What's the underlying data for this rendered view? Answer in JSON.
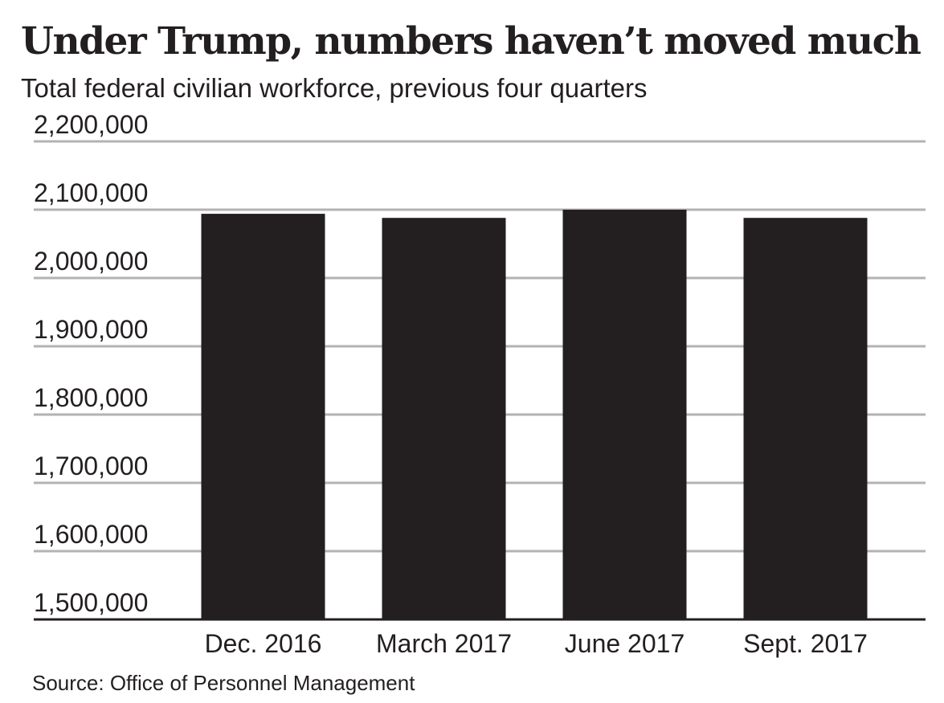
{
  "title": "Under Trump, numbers haven’t moved much",
  "subtitle": "Total federal civilian workforce, previous four quarters",
  "source": "Source: Office of Personnel Management",
  "chart_data": {
    "type": "bar",
    "title": "Under Trump, numbers haven’t moved much",
    "subtitle": "Total federal civilian workforce, previous four quarters",
    "xlabel": "",
    "ylabel": "",
    "categories": [
      "Dec. 2016",
      "March 2017",
      "June 2017",
      "Sept. 2017"
    ],
    "values": [
      2094000,
      2088000,
      2100000,
      2088000
    ],
    "ylim": [
      1500000,
      2200000
    ],
    "yticks": [
      1500000,
      1600000,
      1700000,
      1800000,
      1900000,
      2000000,
      2100000,
      2200000
    ],
    "ytick_labels": [
      "1,500,000",
      "1,600,000",
      "1,700,000",
      "1,800,000",
      "1,900,000",
      "2,000,000",
      "2,100,000",
      "2,200,000"
    ],
    "grid": true,
    "legend": "none"
  },
  "colors": {
    "bar": "#231f20",
    "gridline": "#b3b3b3",
    "baseline": "#231f20",
    "text": "#231f20"
  }
}
